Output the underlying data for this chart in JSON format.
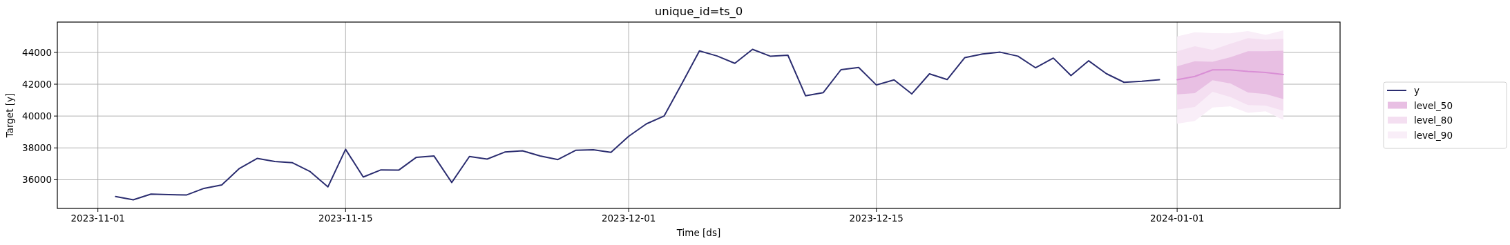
{
  "chart_data": {
    "type": "line",
    "title": "unique_id=ts_0",
    "xlabel": "Time [ds]",
    "ylabel": "Target [y]",
    "xlim": [
      "2023-10-29T17:00",
      "2024-01-10T05:00"
    ],
    "xticks": [
      {
        "value": "2023-11-01",
        "label": "2023-11-01"
      },
      {
        "value": "2023-11-15",
        "label": "2023-11-15"
      },
      {
        "value": "2023-12-01",
        "label": "2023-12-01"
      },
      {
        "value": "2023-12-15",
        "label": "2023-12-15"
      },
      {
        "value": "2024-01-01",
        "label": "2024-01-01"
      }
    ],
    "ylim": [
      34200,
      45900
    ],
    "yticks": [
      36000,
      38000,
      40000,
      42000,
      44000
    ],
    "grid": true,
    "legend": "right",
    "line_style": "solid",
    "marker": "none",
    "series": [
      {
        "name": "y",
        "color": "#2b2d70",
        "x": [
          "2023-11-02",
          "2023-11-03",
          "2023-11-04",
          "2023-11-05",
          "2023-11-06",
          "2023-11-07",
          "2023-11-08",
          "2023-11-09",
          "2023-11-10",
          "2023-11-11",
          "2023-11-12",
          "2023-11-13",
          "2023-11-14",
          "2023-11-15",
          "2023-11-16",
          "2023-11-17",
          "2023-11-18",
          "2023-11-19",
          "2023-11-20",
          "2023-11-21",
          "2023-11-22",
          "2023-11-23",
          "2023-11-24",
          "2023-11-25",
          "2023-11-26",
          "2023-11-27",
          "2023-11-28",
          "2023-11-29",
          "2023-11-30",
          "2023-12-01",
          "2023-12-02",
          "2023-12-03",
          "2023-12-04",
          "2023-12-05",
          "2023-12-06",
          "2023-12-07",
          "2023-12-08",
          "2023-12-09",
          "2023-12-10",
          "2023-12-11",
          "2023-12-12",
          "2023-12-13",
          "2023-12-14",
          "2023-12-15",
          "2023-12-16",
          "2023-12-17",
          "2023-12-18",
          "2023-12-19",
          "2023-12-20",
          "2023-12-21",
          "2023-12-22",
          "2023-12-23",
          "2023-12-24",
          "2023-12-25",
          "2023-12-26",
          "2023-12-27",
          "2023-12-28",
          "2023-12-29",
          "2023-12-30",
          "2023-12-31"
        ],
        "values": [
          34950,
          34740,
          35100,
          35070,
          35040,
          35460,
          35670,
          36710,
          37340,
          37150,
          37070,
          36510,
          35550,
          37910,
          36170,
          36620,
          36600,
          37410,
          37490,
          35830,
          37460,
          37300,
          37740,
          37820,
          37490,
          37270,
          37850,
          37880,
          37720,
          38730,
          39510,
          40000,
          42020,
          44090,
          43770,
          43310,
          44190,
          43760,
          43820,
          41270,
          41470,
          42910,
          43050,
          41950,
          42270,
          41390,
          42650,
          42290,
          43670,
          43900,
          44010,
          43760,
          43030,
          43640,
          42540,
          43470,
          42660,
          42120,
          42180,
          42280
        ]
      },
      {
        "color": "#d98fd5",
        "x": [
          "2024-01-01",
          "2024-01-02",
          "2024-01-03",
          "2024-01-04",
          "2024-01-05",
          "2024-01-06",
          "2024-01-07"
        ],
        "values": [
          42280,
          42490,
          42900,
          42900,
          42800,
          42740,
          42610
        ]
      },
      {
        "name": "level_50",
        "color": "#e8bfe3",
        "x": [
          "2024-01-01",
          "2024-01-02",
          "2024-01-03",
          "2024-01-04",
          "2024-01-05",
          "2024-01-06",
          "2024-01-07"
        ],
        "values": [
          null,
          null,
          null,
          null,
          null,
          null,
          null
        ],
        "lower": [
          41360,
          41440,
          42250,
          42050,
          41480,
          41380,
          41070
        ],
        "upper": [
          43130,
          43440,
          43410,
          43690,
          44070,
          44070,
          44100
        ]
      },
      {
        "name": "level_80",
        "color": "#f4dff1",
        "x": [
          "2024-01-01",
          "2024-01-02",
          "2024-01-03",
          "2024-01-04",
          "2024-01-05",
          "2024-01-06",
          "2024-01-07"
        ],
        "values": [
          null,
          null,
          null,
          null,
          null,
          null,
          null
        ],
        "lower": [
          40410,
          40570,
          41520,
          41200,
          40690,
          40660,
          40330
        ],
        "upper": [
          44070,
          44380,
          44160,
          44540,
          44890,
          44790,
          44850
        ]
      },
      {
        "name": "level_90",
        "color": "#f9eef8",
        "x": [
          "2024-01-01",
          "2024-01-02",
          "2024-01-03",
          "2024-01-04",
          "2024-01-05",
          "2024-01-06",
          "2024-01-07"
        ],
        "values": [
          null,
          null,
          null,
          null,
          null,
          null,
          null
        ],
        "lower": [
          39520,
          39690,
          40540,
          40610,
          40200,
          40300,
          39760
        ],
        "upper": [
          45000,
          45260,
          45210,
          45200,
          45340,
          45100,
          45380
        ]
      }
    ]
  }
}
